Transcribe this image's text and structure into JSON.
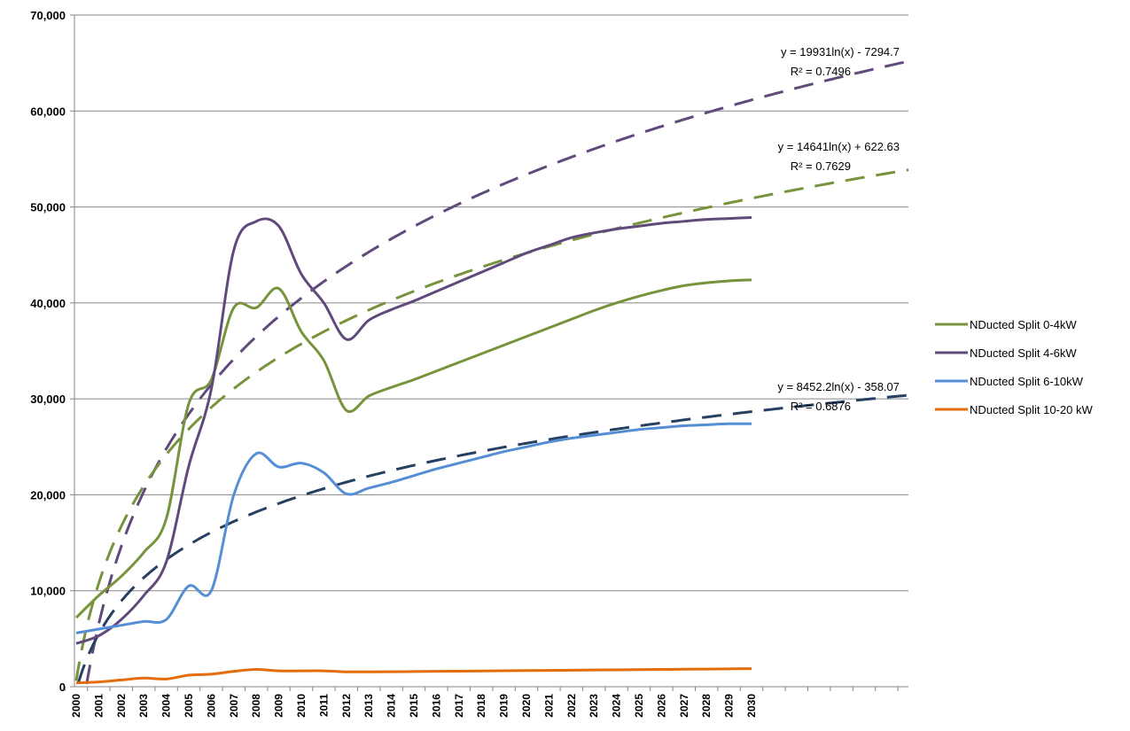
{
  "chart_data": {
    "type": "line",
    "x": [
      "2000",
      "2001",
      "2002",
      "2003",
      "2004",
      "2005",
      "2006",
      "2007",
      "2008",
      "2009",
      "2010",
      "2011",
      "2012",
      "2013",
      "2014",
      "2015",
      "2016",
      "2017",
      "2018",
      "2019",
      "2020",
      "2021",
      "2022",
      "2023",
      "2024",
      "2025",
      "2026",
      "2027",
      "2028",
      "2029",
      "2030"
    ],
    "ylim": [
      0,
      70000
    ],
    "yticks": [
      "0",
      "10,000",
      "20,000",
      "30,000",
      "40,000",
      "50,000",
      "60,000",
      "70,000"
    ],
    "grid": true,
    "legend_position": "right",
    "series": [
      {
        "name": "NDucted Split 0-4kW",
        "color": "#77933c",
        "values": [
          7200,
          9500,
          11500,
          14000,
          17500,
          29500,
          32000,
          39500,
          39500,
          41500,
          37000,
          34000,
          28800,
          30300,
          31200,
          32000,
          32900,
          33800,
          34700,
          35600,
          36500,
          37400,
          38300,
          39200,
          40000,
          40700,
          41300,
          41800,
          42100,
          42300,
          42400
        ]
      },
      {
        "name": "NDucted Split 4-6kW",
        "color": "#604a7b",
        "values": [
          4500,
          5300,
          7000,
          9500,
          13000,
          23000,
          31000,
          45500,
          48500,
          48000,
          43000,
          40000,
          36200,
          38200,
          39300,
          40200,
          41200,
          42200,
          43200,
          44200,
          45200,
          46000,
          46800,
          47300,
          47700,
          48000,
          48300,
          48500,
          48700,
          48800,
          48900
        ]
      },
      {
        "name": "NDucted Split 6-10kW",
        "color": "#558ed5",
        "values": [
          5600,
          6000,
          6400,
          6800,
          7000,
          10500,
          10000,
          20000,
          24300,
          22900,
          23300,
          22300,
          20100,
          20700,
          21300,
          22000,
          22700,
          23300,
          23900,
          24500,
          25000,
          25500,
          25900,
          26200,
          26500,
          26800,
          27000,
          27200,
          27300,
          27400,
          27400
        ]
      },
      {
        "name": "NDucted Split 10-20 kW",
        "color": "#e46c0a",
        "values": [
          400,
          500,
          700,
          900,
          800,
          1200,
          1300,
          1600,
          1800,
          1650,
          1650,
          1650,
          1550,
          1550,
          1560,
          1580,
          1600,
          1620,
          1640,
          1660,
          1680,
          1700,
          1720,
          1740,
          1760,
          1780,
          1800,
          1820,
          1840,
          1860,
          1880
        ]
      }
    ],
    "trendlines": [
      {
        "series": "NDucted Split 4-6kW",
        "type": "logarithmic",
        "color": "#604a7b",
        "equation": "y = 19931ln(x) - 7294.7",
        "r2": "R² = 0.7496",
        "a": 19931,
        "b": -7294.7
      },
      {
        "series": "NDucted Split 0-4kW",
        "type": "logarithmic",
        "color": "#77933c",
        "equation": "y = 14641ln(x) + 622.63",
        "r2": "R² = 0.7629",
        "a": 14641,
        "b": 622.63
      },
      {
        "series": "NDucted Split 6-10kW",
        "type": "logarithmic",
        "color": "#254061",
        "equation": "y = 8452.2ln(x) - 358.07",
        "r2": "R² = 0.6876",
        "a": 8452.2,
        "b": -358.07
      }
    ]
  }
}
